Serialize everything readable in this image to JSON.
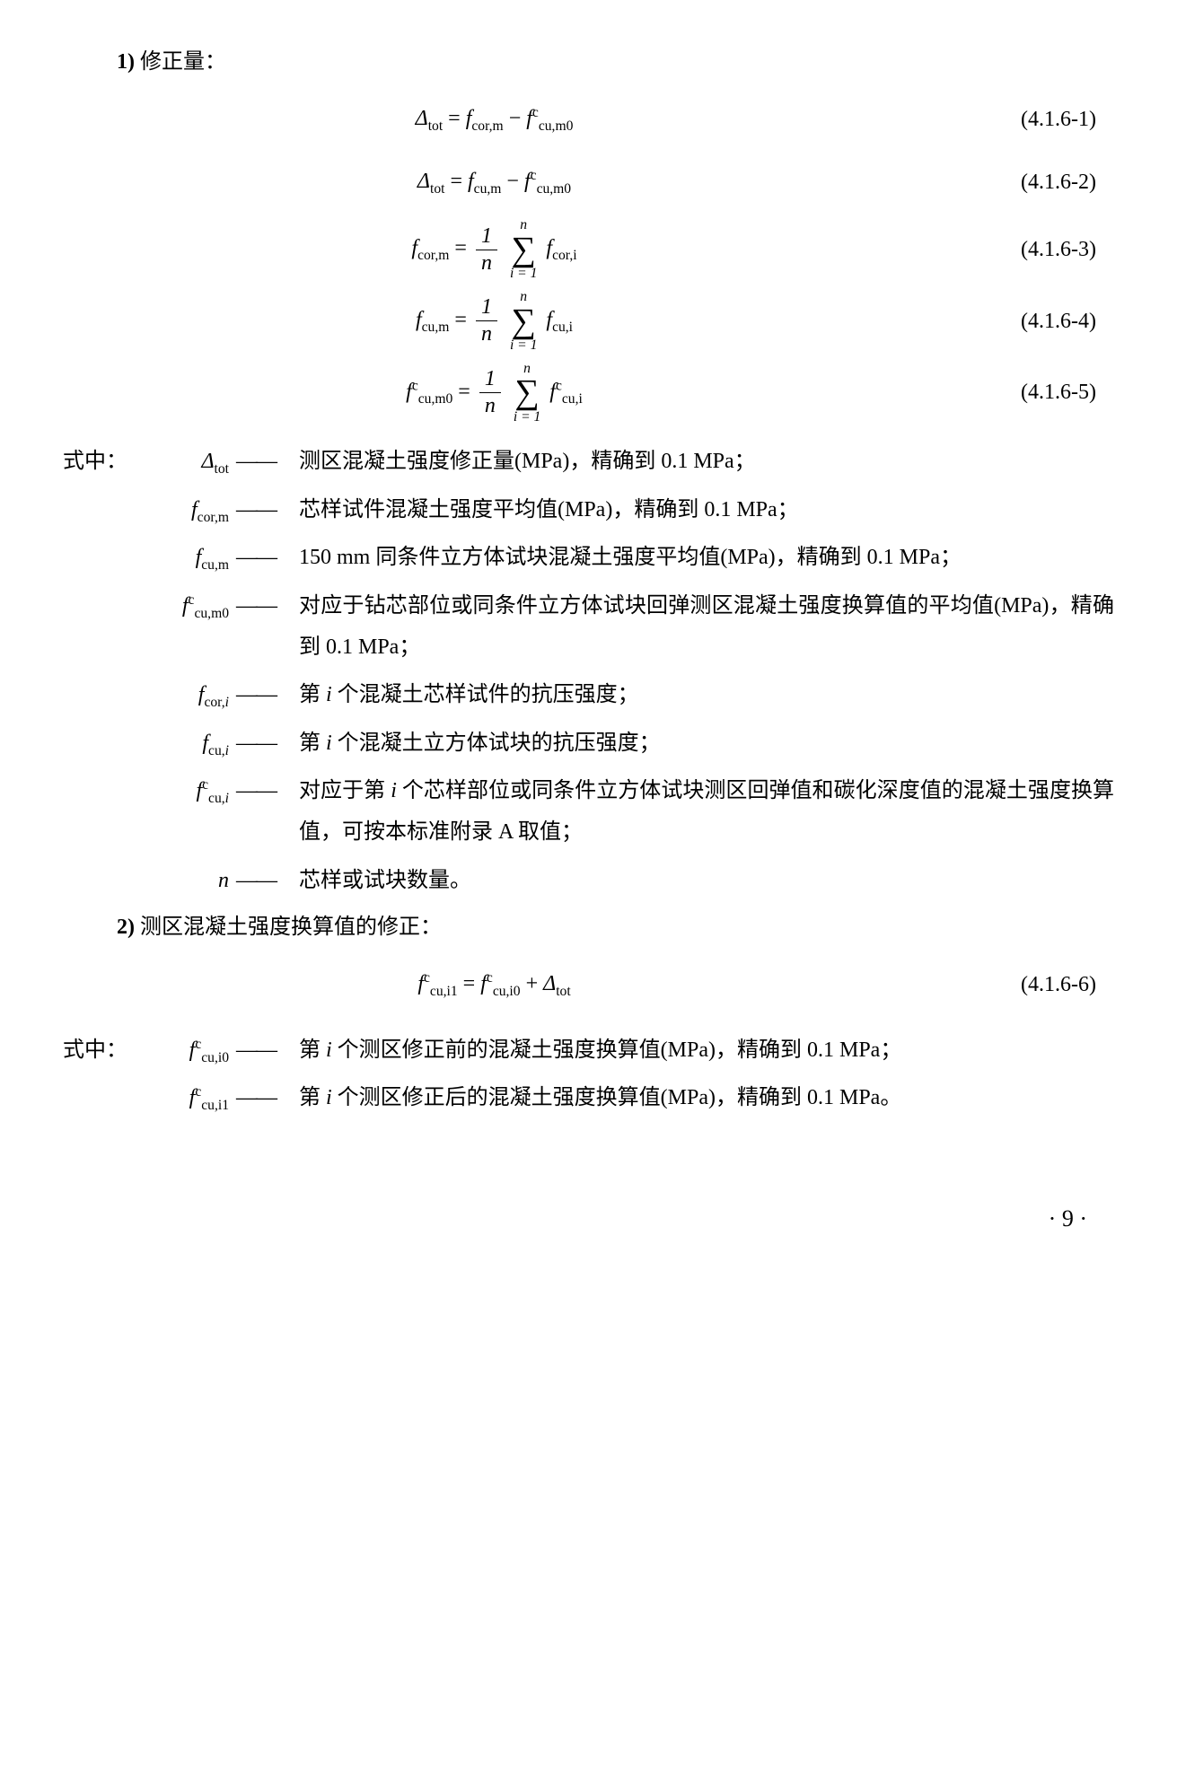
{
  "section1": {
    "num": "1)",
    "title": "修正量："
  },
  "eq1": {
    "lhs_var": "Δ",
    "lhs_sub": "tot",
    "rhs_a_var": "f",
    "rhs_a_sub": "cor,m",
    "op": " − ",
    "rhs_b_var": "f",
    "rhs_b_sup": "c",
    "rhs_b_sub": "cu,m0",
    "label": "(4.1.6-1)"
  },
  "eq2": {
    "lhs_var": "Δ",
    "lhs_sub": "tot",
    "rhs_a_var": "f",
    "rhs_a_sub": "cu,m",
    "op": " − ",
    "rhs_b_var": "f",
    "rhs_b_sup": "c",
    "rhs_b_sub": "cu,m0",
    "label": "(4.1.6-2)"
  },
  "eq3": {
    "lhs_var": "f",
    "lhs_sub": "cor,m",
    "frac_num": "1",
    "frac_den": "n",
    "sum_top": "n",
    "sum_bot": "i = 1",
    "term_var": "f",
    "term_sub": "cor,i",
    "label": "(4.1.6-3)"
  },
  "eq4": {
    "lhs_var": "f",
    "lhs_sub": "cu,m",
    "frac_num": "1",
    "frac_den": "n",
    "sum_top": "n",
    "sum_bot": "i = 1",
    "term_var": "f",
    "term_sub": "cu,i",
    "label": "(4.1.6-4)"
  },
  "eq5": {
    "lhs_var": "f",
    "lhs_sup": "c",
    "lhs_sub": "cu,m0",
    "frac_num": "1",
    "frac_den": "n",
    "sum_top": "n",
    "sum_bot": "i = 1",
    "term_var": "f",
    "term_sup": "c",
    "term_sub": "cu,i",
    "label": "(4.1.6-5)"
  },
  "where_label": "式中：",
  "dash": "——",
  "defs": [
    {
      "prefix": "式中：",
      "sym_var": "Δ",
      "sym_sub": "tot",
      "sym_sup": "",
      "text": "测区混凝土强度修正量(MPa)，精确到 0.1 MPa；"
    },
    {
      "prefix": "",
      "sym_var": "f",
      "sym_sub": "cor,m",
      "sym_sup": "",
      "text": "芯样试件混凝土强度平均值(MPa)，精确到 0.1 MPa；"
    },
    {
      "prefix": "",
      "sym_var": "f",
      "sym_sub": "cu,m",
      "sym_sup": "",
      "text": "150 mm 同条件立方体试块混凝土强度平均值(MPa)，精确到 0.1 MPa；"
    },
    {
      "prefix": "",
      "sym_var": "f",
      "sym_sub": "cu,m0",
      "sym_sup": "c",
      "text": "对应于钻芯部位或同条件立方体试块回弹测区混凝土强度换算值的平均值(MPa)，精确到 0.1 MPa；"
    },
    {
      "prefix": "",
      "sym_var": "f",
      "sym_sub": "cor,i",
      "sym_sup": "",
      "text": "第 i 个混凝土芯样试件的抗压强度；"
    },
    {
      "prefix": "",
      "sym_var": "f",
      "sym_sub": "cu,i",
      "sym_sup": "",
      "text": "第 i 个混凝土立方体试块的抗压强度；"
    },
    {
      "prefix": "",
      "sym_var": "f",
      "sym_sub": "cu,i",
      "sym_sup": "c",
      "text": "对应于第 i 个芯样部位或同条件立方体试块测区回弹值和碳化深度值的混凝土强度换算值，可按本标准附录 A 取值；"
    },
    {
      "prefix": "",
      "sym_var": "n",
      "sym_sub": "",
      "sym_sup": "",
      "text": "芯样或试块数量。"
    }
  ],
  "section2": {
    "num": "2)",
    "title": "测区混凝土强度换算值的修正："
  },
  "eq6": {
    "lhs_var": "f",
    "lhs_sup": "c",
    "lhs_sub": "cu,i1",
    "rhs_a_var": "f",
    "rhs_a_sup": "c",
    "rhs_a_sub": "cu,i0",
    "op": " + ",
    "rhs_b_var": "Δ",
    "rhs_b_sub": "tot",
    "label": "(4.1.6-6)"
  },
  "defs2": [
    {
      "prefix": "式中：",
      "sym_var": "f",
      "sym_sub": "cu,i0",
      "sym_sup": "c",
      "text": "第 i 个测区修正前的混凝土强度换算值(MPa)，精确到 0.1 MPa；"
    },
    {
      "prefix": "",
      "sym_var": "f",
      "sym_sub": "cu,i1",
      "sym_sup": "c",
      "text": "第 i 个测区修正后的混凝土强度换算值(MPa)，精确到 0.1 MPa。"
    }
  ],
  "page": "· 9 ·"
}
